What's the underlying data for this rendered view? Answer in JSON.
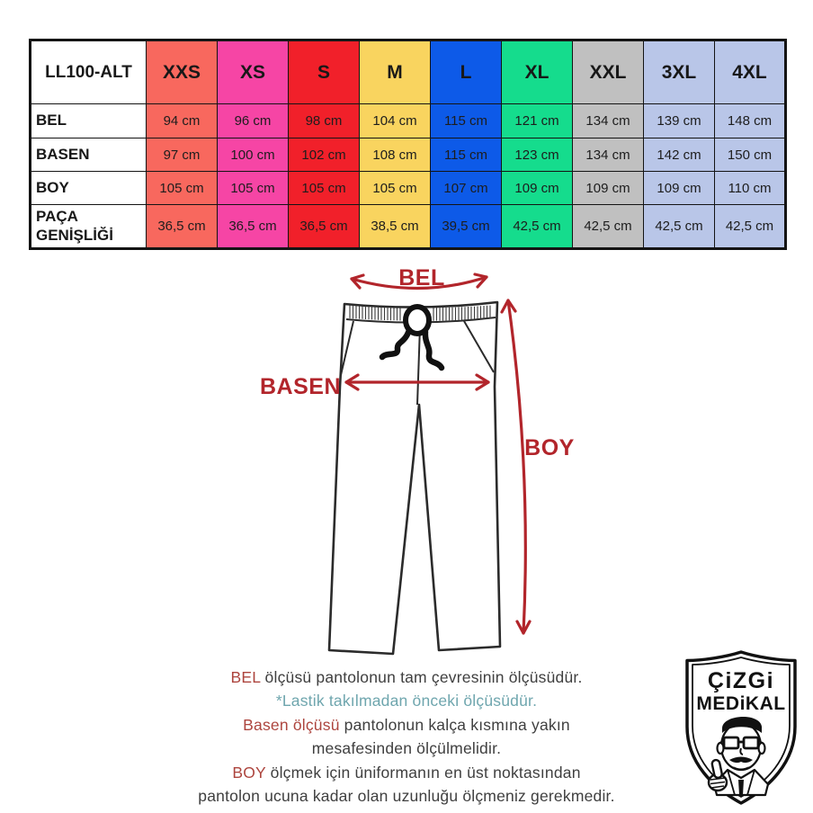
{
  "table": {
    "model_label": "LL100-ALT",
    "size_headers": [
      "XXS",
      "XS",
      "S",
      "M",
      "L",
      "XL",
      "XXL",
      "3XL",
      "4XL"
    ],
    "column_colors": [
      "#f8685e",
      "#f645a5",
      "#f1202a",
      "#f9d45f",
      "#0d5ae8",
      "#15dc8d",
      "#c0c0c0",
      "#b9c6e8",
      "#b9c6e8"
    ],
    "rows": [
      {
        "label": "BEL",
        "values": [
          "94 cm",
          "96 cm",
          "98 cm",
          "104 cm",
          "115 cm",
          "121 cm",
          "134 cm",
          "139 cm",
          "148 cm"
        ]
      },
      {
        "label": "BASEN",
        "values": [
          "97 cm",
          "100 cm",
          "102 cm",
          "108 cm",
          "115 cm",
          "123 cm",
          "134 cm",
          "142 cm",
          "150 cm"
        ]
      },
      {
        "label": "BOY",
        "values": [
          "105 cm",
          "105 cm",
          "105 cm",
          "105 cm",
          "107 cm",
          "109 cm",
          "109 cm",
          "109 cm",
          "110 cm"
        ]
      },
      {
        "label": "PAÇA GENİŞLİĞİ",
        "values": [
          "36,5 cm",
          "36,5 cm",
          "36,5 cm",
          "38,5 cm",
          "39,5 cm",
          "42,5 cm",
          "42,5 cm",
          "42,5 cm",
          "42,5 cm"
        ]
      }
    ]
  },
  "diagram": {
    "bel_label": "BEL",
    "basen_label": "BASEN",
    "boy_label": "BOY",
    "arrow_color": "#b2252b"
  },
  "notes": {
    "l1_key": "BEL",
    "l1_rest": " ölçüsü pantolonun tam çevresinin ölçüsüdür.",
    "l2": "*Lastik takılmadan önceki ölçüsüdür.",
    "l3_key": "Basen ölçüsü",
    "l3_rest": " pantolonun kalça kısmına yakın",
    "l4": "mesafesinden ölçülmelidir.",
    "l5_key": "BOY",
    "l5_rest": " ölçmek için üniformanın en üst noktasından",
    "l6": "pantolon ucuna kadar olan uzunluğu ölçmeniz gerekmedir."
  },
  "colors": {
    "note_red": "#ad453e",
    "note_teal": "#6fa6ae",
    "note_dark": "#3f3f3f",
    "table_border": "#141414"
  },
  "logo": {
    "line1": "ÇiZGi",
    "line2": "MEDiKAL"
  }
}
